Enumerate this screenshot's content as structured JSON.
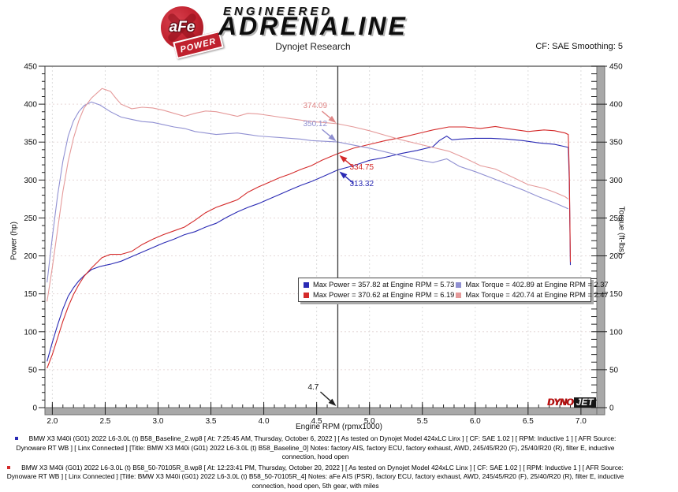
{
  "header": {
    "logo_circle_text": "aFe",
    "logo_banner_text": "POWER",
    "brand_line1": "ENGINEERED",
    "brand_line2": "ADRENALINE",
    "title": "Dynojet Research",
    "correction": "CF: SAE  Smoothing: 5"
  },
  "chart_data": {
    "type": "line",
    "title": "Dynojet Research",
    "xlabel": "Engine RPM (rpmx1000)",
    "ylabel_left": "Power (hp)",
    "ylabel_right": "Torque (ft-lbs)",
    "xlim": [
      1.93,
      7.15
    ],
    "ylim": [
      0,
      450
    ],
    "grid": true,
    "x_ticks": [
      "2.0",
      "2.5",
      "3.0",
      "3.5",
      "4.0",
      "4.5",
      "5.0",
      "5.5",
      "6.0",
      "6.5",
      "7.0"
    ],
    "y_ticks": [
      0,
      50,
      100,
      150,
      200,
      250,
      300,
      350,
      400,
      450
    ],
    "cursor": {
      "rpm": 4.7,
      "label": "4.7"
    },
    "series": [
      {
        "name": "baseline-power-hp",
        "color": "#2a2ab4",
        "points": [
          [
            1.95,
            61
          ],
          [
            2.0,
            86
          ],
          [
            2.05,
            109
          ],
          [
            2.1,
            130
          ],
          [
            2.15,
            147
          ],
          [
            2.2,
            158
          ],
          [
            2.25,
            167
          ],
          [
            2.3,
            174
          ],
          [
            2.37,
            182
          ],
          [
            2.45,
            186
          ],
          [
            2.55,
            189
          ],
          [
            2.65,
            193
          ],
          [
            2.75,
            199
          ],
          [
            2.85,
            205
          ],
          [
            2.95,
            211
          ],
          [
            3.05,
            217
          ],
          [
            3.15,
            222
          ],
          [
            3.25,
            228
          ],
          [
            3.35,
            232
          ],
          [
            3.45,
            238
          ],
          [
            3.55,
            243
          ],
          [
            3.65,
            251
          ],
          [
            3.75,
            258
          ],
          [
            3.85,
            264
          ],
          [
            3.95,
            269
          ],
          [
            4.05,
            275
          ],
          [
            4.15,
            281
          ],
          [
            4.25,
            287
          ],
          [
            4.35,
            293
          ],
          [
            4.45,
            298
          ],
          [
            4.55,
            304
          ],
          [
            4.7,
            313.3
          ],
          [
            4.85,
            319
          ],
          [
            5.0,
            326
          ],
          [
            5.15,
            330
          ],
          [
            5.3,
            335
          ],
          [
            5.45,
            339
          ],
          [
            5.6,
            344
          ],
          [
            5.66,
            352
          ],
          [
            5.73,
            357.8
          ],
          [
            5.78,
            353
          ],
          [
            5.85,
            354
          ],
          [
            6.0,
            355
          ],
          [
            6.15,
            355
          ],
          [
            6.3,
            354
          ],
          [
            6.45,
            352
          ],
          [
            6.6,
            349
          ],
          [
            6.75,
            347
          ],
          [
            6.85,
            344
          ],
          [
            6.88,
            343
          ],
          [
            6.89,
            300
          ],
          [
            6.9,
            188
          ]
        ]
      },
      {
        "name": "afe-power-hp",
        "color": "#d42a2a",
        "points": [
          [
            1.95,
            52
          ],
          [
            2.0,
            70
          ],
          [
            2.05,
            92
          ],
          [
            2.1,
            114
          ],
          [
            2.15,
            133
          ],
          [
            2.2,
            149
          ],
          [
            2.25,
            162
          ],
          [
            2.3,
            173
          ],
          [
            2.37,
            184
          ],
          [
            2.47,
            197.8
          ],
          [
            2.55,
            202
          ],
          [
            2.65,
            202
          ],
          [
            2.75,
            206
          ],
          [
            2.85,
            215
          ],
          [
            2.95,
            222
          ],
          [
            3.05,
            228
          ],
          [
            3.15,
            233
          ],
          [
            3.25,
            238
          ],
          [
            3.35,
            247
          ],
          [
            3.45,
            257
          ],
          [
            3.55,
            264
          ],
          [
            3.65,
            269
          ],
          [
            3.75,
            274
          ],
          [
            3.85,
            284
          ],
          [
            3.95,
            291
          ],
          [
            4.05,
            297
          ],
          [
            4.15,
            303
          ],
          [
            4.25,
            308
          ],
          [
            4.35,
            314
          ],
          [
            4.45,
            319
          ],
          [
            4.55,
            326
          ],
          [
            4.7,
            334.8
          ],
          [
            4.85,
            342
          ],
          [
            5.0,
            347
          ],
          [
            5.15,
            352
          ],
          [
            5.3,
            356
          ],
          [
            5.45,
            361
          ],
          [
            5.6,
            366
          ],
          [
            5.75,
            370
          ],
          [
            5.9,
            370
          ],
          [
            6.05,
            368
          ],
          [
            6.19,
            370.6
          ],
          [
            6.35,
            367
          ],
          [
            6.5,
            364
          ],
          [
            6.65,
            366
          ],
          [
            6.75,
            365
          ],
          [
            6.85,
            362
          ],
          [
            6.88,
            360
          ],
          [
            6.89,
            310
          ],
          [
            6.9,
            192
          ]
        ]
      },
      {
        "name": "baseline-torque-ftlbs",
        "color": "#9090d2",
        "points": [
          [
            1.95,
            165
          ],
          [
            2.0,
            225
          ],
          [
            2.05,
            280
          ],
          [
            2.1,
            325
          ],
          [
            2.15,
            358
          ],
          [
            2.2,
            378
          ],
          [
            2.25,
            390
          ],
          [
            2.3,
            398
          ],
          [
            2.37,
            402.9
          ],
          [
            2.45,
            399
          ],
          [
            2.55,
            390
          ],
          [
            2.65,
            383
          ],
          [
            2.75,
            380
          ],
          [
            2.85,
            377
          ],
          [
            2.95,
            376
          ],
          [
            3.05,
            373
          ],
          [
            3.15,
            370
          ],
          [
            3.25,
            368
          ],
          [
            3.35,
            364
          ],
          [
            3.45,
            362
          ],
          [
            3.55,
            360
          ],
          [
            3.65,
            361
          ],
          [
            3.75,
            362
          ],
          [
            3.85,
            360
          ],
          [
            3.95,
            358
          ],
          [
            4.05,
            357
          ],
          [
            4.15,
            356
          ],
          [
            4.25,
            355
          ],
          [
            4.35,
            354
          ],
          [
            4.45,
            352
          ],
          [
            4.7,
            350.1
          ],
          [
            4.85,
            346
          ],
          [
            5.0,
            342
          ],
          [
            5.15,
            337
          ],
          [
            5.3,
            332
          ],
          [
            5.45,
            327
          ],
          [
            5.6,
            323
          ],
          [
            5.73,
            327.9
          ],
          [
            5.85,
            318
          ],
          [
            6.0,
            311
          ],
          [
            6.15,
            303
          ],
          [
            6.3,
            295
          ],
          [
            6.45,
            287
          ],
          [
            6.6,
            278
          ],
          [
            6.75,
            270
          ],
          [
            6.85,
            264
          ],
          [
            6.88,
            262
          ]
        ]
      },
      {
        "name": "afe-torque-ftlbs",
        "color": "#e59a9a",
        "points": [
          [
            1.95,
            140
          ],
          [
            2.0,
            185
          ],
          [
            2.05,
            235
          ],
          [
            2.1,
            285
          ],
          [
            2.15,
            325
          ],
          [
            2.2,
            355
          ],
          [
            2.25,
            378
          ],
          [
            2.3,
            395
          ],
          [
            2.37,
            408
          ],
          [
            2.47,
            420.7
          ],
          [
            2.55,
            417
          ],
          [
            2.6,
            408
          ],
          [
            2.65,
            400
          ],
          [
            2.75,
            394
          ],
          [
            2.85,
            396
          ],
          [
            2.95,
            395
          ],
          [
            3.05,
            392
          ],
          [
            3.15,
            388
          ],
          [
            3.25,
            384
          ],
          [
            3.35,
            388
          ],
          [
            3.45,
            391
          ],
          [
            3.55,
            390
          ],
          [
            3.65,
            387
          ],
          [
            3.75,
            384
          ],
          [
            3.85,
            388
          ],
          [
            3.95,
            387
          ],
          [
            4.05,
            385
          ],
          [
            4.15,
            383
          ],
          [
            4.25,
            381
          ],
          [
            4.35,
            379
          ],
          [
            4.45,
            377
          ],
          [
            4.55,
            376
          ],
          [
            4.7,
            374.1
          ],
          [
            4.85,
            370
          ],
          [
            5.0,
            365
          ],
          [
            5.15,
            359
          ],
          [
            5.3,
            353
          ],
          [
            5.45,
            348
          ],
          [
            5.6,
            343
          ],
          [
            5.75,
            338
          ],
          [
            5.9,
            329
          ],
          [
            6.05,
            319
          ],
          [
            6.19,
            314.5
          ],
          [
            6.35,
            304
          ],
          [
            6.5,
            294
          ],
          [
            6.65,
            289
          ],
          [
            6.75,
            284
          ],
          [
            6.85,
            278
          ],
          [
            6.88,
            275
          ]
        ]
      }
    ],
    "annotations": [
      {
        "text": "374.09",
        "rpm": 4.7,
        "value": 374.09,
        "color": "#e08888",
        "dir": "down-right"
      },
      {
        "text": "350.12",
        "rpm": 4.7,
        "value": 350.12,
        "color": "#8f8fd0",
        "dir": "down-right"
      },
      {
        "text": "334.75",
        "rpm": 4.7,
        "value": 334.75,
        "color": "#d42a2a",
        "dir": "up-left"
      },
      {
        "text": "313.32",
        "rpm": 4.7,
        "value": 313.32,
        "color": "#2a2ab4",
        "dir": "up-left"
      }
    ],
    "legend": [
      {
        "color": "#2a2ab4",
        "label": "Max Power = 357.82 at Engine RPM = 5.73"
      },
      {
        "color": "#9090d2",
        "label": "Max Torque = 402.89 at Engine RPM = 2.37"
      },
      {
        "color": "#d42a2a",
        "label": "Max Power = 370.62 at Engine RPM = 6.19"
      },
      {
        "color": "#e59a9a",
        "label": "Max Torque = 420.74 at Engine RPM = 2.47"
      }
    ],
    "legend_position": "bottom-center",
    "watermark": {
      "part1": "DYNO",
      "part2": "JET"
    }
  },
  "footer": {
    "runs": [
      {
        "bullet_color": "#2a2ab4",
        "text": "BMW X3 M40i (G01) 2022 L6-3.0L (t) B58_Baseline_2.wp8 [ At: 7:25:45 AM, Thursday, October 6, 2022 ] [ As tested on Dynojet Model 424xLC Linx ] [ CF: SAE 1.02 ] [ RPM: Inductive 1 ] [ AFR Source: Dynoware RT WB ] [ Linx Connected ] [Title: BMW X3 M40i (G01) 2022 L6-3.0L (t) B58_Baseline_0]  Notes: factory AIS, factory ECU, factory exhaust, AWD, 245/45/R20 (F), 25/40/R20 (R), filter E, inductive connection, hood open"
      },
      {
        "bullet_color": "#d42a2a",
        "text": "BMW X3 M40i (G01) 2022 L6-3.0L (t) B58_50-70105R_8.wp8 [ At: 12:23:41 PM, Thursday, October 20, 2022 ] [ As tested on Dynojet Model 424xLC Linx ] [ CF: SAE 1.02 ] [ RPM: Inductive 1 ] [ AFR Source: Dynoware RT WB ] [ Linx Connected ] [Title: BMW X3 M40i (G01) 2022 L6-3.0L (t) B58_50-70105R_4]  Notes: aFe AIS (PSR), factory ECU, factory exhaust, AWD, 245/45/R20 (F), 25/40/R20 (R), filter E, inductive connection, hood open, 5th gear, with miles"
      }
    ]
  }
}
